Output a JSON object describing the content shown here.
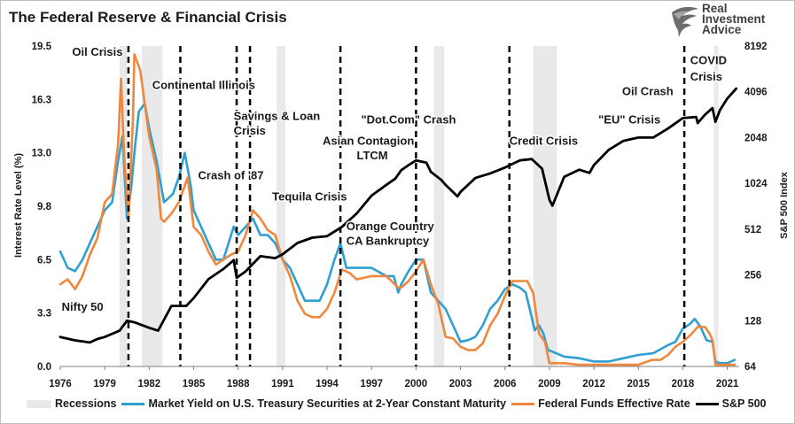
{
  "header": {
    "title": "The Federal Reserve & Financial Crisis"
  },
  "logo": {
    "line1": "Real",
    "line2": "Investment",
    "line3": "Advice",
    "icon": "eagle-icon"
  },
  "colors": {
    "treasury": "#2e9fd1",
    "fedfunds": "#f0873c",
    "sp500": "#000000",
    "recession": "#e9e9e9",
    "crisis_line": "#000000"
  },
  "chart_data": {
    "type": "line",
    "title": "The Federal Reserve & Financial Crisis",
    "xlabel": "",
    "ylabel": "Interest Rate Level (%)",
    "y2label": "S&P 500 Index",
    "xlim": [
      1976,
      2021.8
    ],
    "ylim": [
      0,
      19.5
    ],
    "y2lim": [
      64,
      8192
    ],
    "y2scale": "log2",
    "x_ticks": [
      "1976",
      "1979",
      "1982",
      "1985",
      "1988",
      "1991",
      "1994",
      "1997",
      "2000",
      "2003",
      "2006",
      "2009",
      "2012",
      "2015",
      "2018",
      "2021"
    ],
    "y_ticks": [
      "0.0",
      "3.3",
      "6.5",
      "9.8",
      "13.0",
      "16.3",
      "19.5"
    ],
    "y2_ticks": [
      "64",
      "128",
      "256",
      "512",
      "1024",
      "2048",
      "4096",
      "8192"
    ],
    "grid": false,
    "legend_position": "bottom",
    "legend": [
      {
        "key": "recession",
        "label": "Recessions"
      },
      {
        "key": "treasury",
        "label": "Market Yield on U.S. Treasury Securities at 2-Year Constant Maturity"
      },
      {
        "key": "fedfunds",
        "label": "Federal Funds Effective Rate"
      },
      {
        "key": "sp500",
        "label": "S&P 500"
      }
    ],
    "recessions": [
      [
        1980.0,
        1980.5
      ],
      [
        1981.5,
        1982.9
      ],
      [
        1990.6,
        1991.2
      ],
      [
        2001.2,
        2001.9
      ],
      [
        2007.9,
        2009.5
      ],
      [
        2020.1,
        2020.4
      ]
    ],
    "crisis_lines": [
      {
        "x": 1980.6,
        "label": "Oil Crisis"
      },
      {
        "x": 1984.1,
        "label": "Continental Illinois"
      },
      {
        "x": 1987.9,
        "label": "Crash of '87"
      },
      {
        "x": 1988.8,
        "label": "Savings & Loan Crisis"
      },
      {
        "x": 1994.9,
        "label": "Tequila Crisis"
      },
      {
        "x": 2000.0,
        "label": "\"Dot.Com\" Crash"
      },
      {
        "x": 2006.3,
        "label": "Credit Crisis"
      },
      {
        "x": 2018.1,
        "label": "COVID Crisis"
      }
    ],
    "annotations": [
      {
        "text": "Oil Crisis",
        "x": 1976.8,
        "y": 18.9
      },
      {
        "text": "Continental Illinois",
        "x": 1982.2,
        "y": 16.9
      },
      {
        "text": "Savings & Loan",
        "x": 1987.7,
        "y": 15.0
      },
      {
        "text": "Crisis",
        "x": 1987.7,
        "y": 14.1
      },
      {
        "text": "Crash of '87",
        "x": 1985.3,
        "y": 11.4
      },
      {
        "text": "Tequila Crisis",
        "x": 1990.3,
        "y": 10.1
      },
      {
        "text": "Asian Contagion",
        "x": 1993.7,
        "y": 13.5
      },
      {
        "text": "LTCM",
        "x": 1996.0,
        "y": 12.6
      },
      {
        "text": "\"Dot.Com\" Crash",
        "x": 1996.3,
        "y": 14.8
      },
      {
        "text": "Orange Country",
        "x": 1995.3,
        "y": 8.3
      },
      {
        "text": "CA Bankruptcy",
        "x": 1995.3,
        "y": 7.4
      },
      {
        "text": "Credit Crisis",
        "x": 2006.3,
        "y": 13.5
      },
      {
        "text": "\"EU\" Crisis",
        "x": 2012.3,
        "y": 14.8
      },
      {
        "text": "Oil Crash",
        "x": 2013.9,
        "y": 16.5
      },
      {
        "text": "COVID",
        "x": 2018.5,
        "y": 18.4
      },
      {
        "text": "Crisis",
        "x": 2018.5,
        "y": 17.4
      },
      {
        "text": "Nifty 50",
        "x": 1976.1,
        "y": 3.4
      }
    ],
    "series": [
      {
        "key": "sp500",
        "name": "S&P 500",
        "axis": "right",
        "x": [
          1976.0,
          1977.0,
          1978.0,
          1978.5,
          1979.0,
          1980.0,
          1980.5,
          1981.0,
          1982.0,
          1982.6,
          1983.5,
          1984.5,
          1985.0,
          1986.0,
          1987.0,
          1987.7,
          1987.9,
          1988.5,
          1989.5,
          1990.5,
          1991.0,
          1992.0,
          1993.0,
          1994.0,
          1995.0,
          1996.0,
          1997.0,
          1998.0,
          1998.6,
          1999.0,
          1999.5,
          2000.0,
          2000.7,
          2001.0,
          2001.7,
          2002.0,
          2002.8,
          2003.0,
          2004.0,
          2005.0,
          2006.0,
          2007.0,
          2007.8,
          2008.5,
          2009.0,
          2009.2,
          2010.0,
          2011.0,
          2011.7,
          2012.0,
          2013.0,
          2014.0,
          2015.0,
          2016.0,
          2017.0,
          2018.0,
          2018.9,
          2019.0,
          2019.5,
          2020.0,
          2020.2,
          2020.5,
          2021.0,
          2021.6
        ],
        "y": [
          100,
          95,
          92,
          97,
          100,
          110,
          128,
          125,
          115,
          110,
          160,
          160,
          180,
          240,
          280,
          320,
          245,
          270,
          340,
          330,
          350,
          415,
          450,
          460,
          530,
          650,
          850,
          1000,
          1100,
          1250,
          1350,
          1450,
          1400,
          1220,
          1080,
          1000,
          840,
          900,
          1110,
          1190,
          1300,
          1450,
          1480,
          1280,
          800,
          730,
          1130,
          1260,
          1200,
          1350,
          1700,
          1950,
          2050,
          2050,
          2350,
          2750,
          2800,
          2550,
          2900,
          3200,
          2600,
          3100,
          3700,
          4300
        ]
      },
      {
        "key": "treasury",
        "name": "Market Yield on U.S. Treasury Securities at 2-Year Constant Maturity",
        "axis": "left",
        "x": [
          1976.0,
          1976.5,
          1977.0,
          1977.5,
          1978.0,
          1978.5,
          1979.0,
          1979.5,
          1979.9,
          1980.2,
          1980.5,
          1980.8,
          1981.0,
          1981.3,
          1981.7,
          1982.0,
          1982.5,
          1983.0,
          1983.6,
          1984.0,
          1984.4,
          1984.8,
          1985.0,
          1985.5,
          1986.0,
          1986.5,
          1987.0,
          1987.7,
          1988.0,
          1988.5,
          1989.0,
          1989.5,
          1990.0,
          1990.5,
          1991.0,
          1991.5,
          1992.0,
          1992.5,
          1993.0,
          1993.5,
          1994.0,
          1994.5,
          1994.9,
          1995.3,
          1996.0,
          1997.0,
          1998.0,
          1998.5,
          1998.8,
          1999.0,
          1999.5,
          2000.0,
          2000.5,
          2001.0,
          2001.5,
          2002.0,
          2002.5,
          2003.0,
          2003.5,
          2004.0,
          2004.5,
          2005.0,
          2005.5,
          2006.0,
          2006.5,
          2007.0,
          2007.4,
          2007.8,
          2008.0,
          2008.3,
          2008.6,
          2008.9,
          2009.2,
          2010.0,
          2011.0,
          2012.0,
          2013.0,
          2014.0,
          2015.0,
          2016.0,
          2017.0,
          2017.5,
          2018.0,
          2018.5,
          2018.8,
          2019.2,
          2019.6,
          2020.0,
          2020.2,
          2020.5,
          2021.0,
          2021.5
        ],
        "y": [
          7.0,
          6.0,
          5.8,
          6.5,
          7.5,
          8.5,
          9.5,
          10.0,
          12.5,
          14.0,
          9.0,
          11.0,
          13.0,
          15.5,
          16.0,
          14.5,
          12.5,
          10.0,
          10.5,
          11.5,
          13.0,
          11.0,
          9.5,
          8.5,
          7.5,
          6.5,
          6.5,
          8.5,
          8.0,
          8.5,
          9.0,
          8.0,
          8.0,
          7.5,
          6.5,
          6.0,
          5.0,
          4.0,
          4.0,
          4.0,
          5.0,
          6.5,
          7.5,
          6.0,
          6.0,
          6.0,
          5.5,
          5.5,
          4.5,
          5.0,
          5.8,
          6.5,
          6.5,
          4.5,
          4.0,
          3.5,
          2.5,
          1.5,
          1.6,
          1.8,
          2.5,
          3.5,
          4.0,
          4.7,
          5.0,
          4.8,
          4.5,
          3.0,
          2.2,
          2.5,
          2.0,
          1.0,
          0.9,
          0.6,
          0.5,
          0.3,
          0.3,
          0.5,
          0.7,
          0.8,
          1.3,
          1.5,
          2.3,
          2.6,
          2.9,
          2.4,
          1.6,
          1.5,
          0.3,
          0.2,
          0.2,
          0.4
        ]
      },
      {
        "key": "fedfunds",
        "name": "Federal Funds Effective Rate",
        "axis": "left",
        "x": [
          1976.0,
          1976.5,
          1977.0,
          1977.5,
          1978.0,
          1978.5,
          1979.0,
          1979.5,
          1979.9,
          1980.1,
          1980.3,
          1980.6,
          1980.9,
          1981.0,
          1981.4,
          1981.7,
          1982.0,
          1982.5,
          1982.8,
          1983.0,
          1983.5,
          1984.0,
          1984.6,
          1985.0,
          1985.5,
          1986.0,
          1986.5,
          1987.0,
          1987.5,
          1988.0,
          1988.5,
          1989.0,
          1989.5,
          1990.0,
          1990.5,
          1991.0,
          1991.5,
          1992.0,
          1992.5,
          1993.0,
          1993.5,
          1994.0,
          1994.5,
          1995.0,
          1995.5,
          1996.0,
          1997.0,
          1998.0,
          1998.8,
          1999.0,
          1999.5,
          2000.0,
          2000.5,
          2001.0,
          2001.5,
          2002.0,
          2002.5,
          2003.0,
          2003.5,
          2004.0,
          2004.5,
          2005.0,
          2005.5,
          2006.0,
          2006.5,
          2007.0,
          2007.5,
          2007.9,
          2008.3,
          2008.7,
          2009.0,
          2010.0,
          2011.0,
          2012.0,
          2013.0,
          2014.0,
          2015.0,
          2015.9,
          2016.5,
          2017.0,
          2017.5,
          2018.0,
          2018.5,
          2019.0,
          2019.5,
          2019.8,
          2020.0,
          2020.2,
          2020.5,
          2021.0,
          2021.5
        ],
        "y": [
          5.0,
          5.3,
          4.7,
          5.5,
          6.8,
          7.8,
          10.0,
          10.5,
          13.5,
          17.5,
          13.0,
          9.0,
          15.0,
          19.0,
          18.0,
          16.0,
          14.0,
          12.0,
          9.0,
          8.8,
          9.3,
          10.0,
          11.5,
          8.5,
          8.0,
          7.0,
          6.2,
          6.5,
          6.8,
          7.0,
          8.0,
          9.5,
          9.0,
          8.3,
          8.0,
          6.5,
          5.5,
          4.0,
          3.2,
          3.0,
          3.0,
          3.5,
          4.5,
          5.9,
          5.7,
          5.3,
          5.5,
          5.5,
          4.8,
          4.8,
          5.2,
          5.8,
          6.5,
          5.0,
          3.8,
          1.8,
          1.7,
          1.2,
          1.0,
          1.0,
          1.4,
          2.5,
          3.2,
          4.3,
          5.2,
          5.2,
          5.2,
          4.5,
          2.0,
          1.5,
          0.2,
          0.2,
          0.1,
          0.1,
          0.1,
          0.1,
          0.1,
          0.4,
          0.4,
          0.7,
          1.2,
          1.5,
          1.9,
          2.4,
          2.4,
          2.0,
          1.6,
          0.1,
          0.1,
          0.1,
          0.1
        ]
      }
    ]
  }
}
